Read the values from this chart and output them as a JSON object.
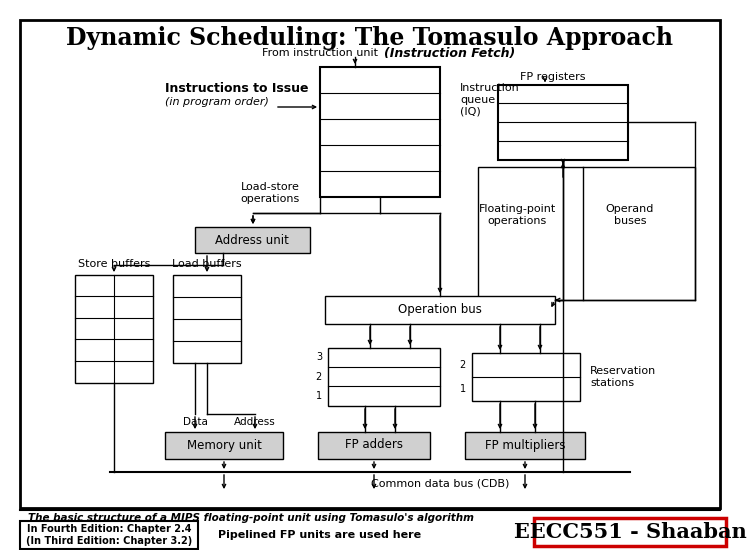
{
  "title": "Dynamic Scheduling: The Tomasulo Approach",
  "subtitle_left": "From instruction unit",
  "subtitle_right": "(Instruction Fetch)",
  "instructions_bold": "Instructions to Issue",
  "instructions_italic": "(in program order)",
  "iq_label": "Instruction\nqueue\n(IQ)",
  "fp_registers_label": "FP registers",
  "operand_buses_label": "Operand\nbuses",
  "load_store_label": "Load-store\noperations",
  "address_unit_label": "Address unit",
  "store_buffers_label": "Store buffers",
  "load_buffers_label": "Load buffers",
  "fp_operations_label": "Floating-point\noperations",
  "operation_bus_label": "Operation bus",
  "reservation_label": "Reservation\nstations",
  "data_label": "Data",
  "address_label": "Address",
  "memory_unit_label": "Memory unit",
  "fp_adders_label": "FP adders",
  "fp_multipliers_label": "FP multipliers",
  "cdb_label": "Common data bus (CDB)",
  "footer_text": "The basic structure of a MIPS floating-point unit using Tomasulo's algorithm",
  "edition_text": "In Fourth Edition: Chapter 2.4\n(In Third Edition: Chapter 3.2)",
  "pipelined_text": "Pipelined FP units are used here",
  "eecc_text": "EECC551 - Shaaban"
}
